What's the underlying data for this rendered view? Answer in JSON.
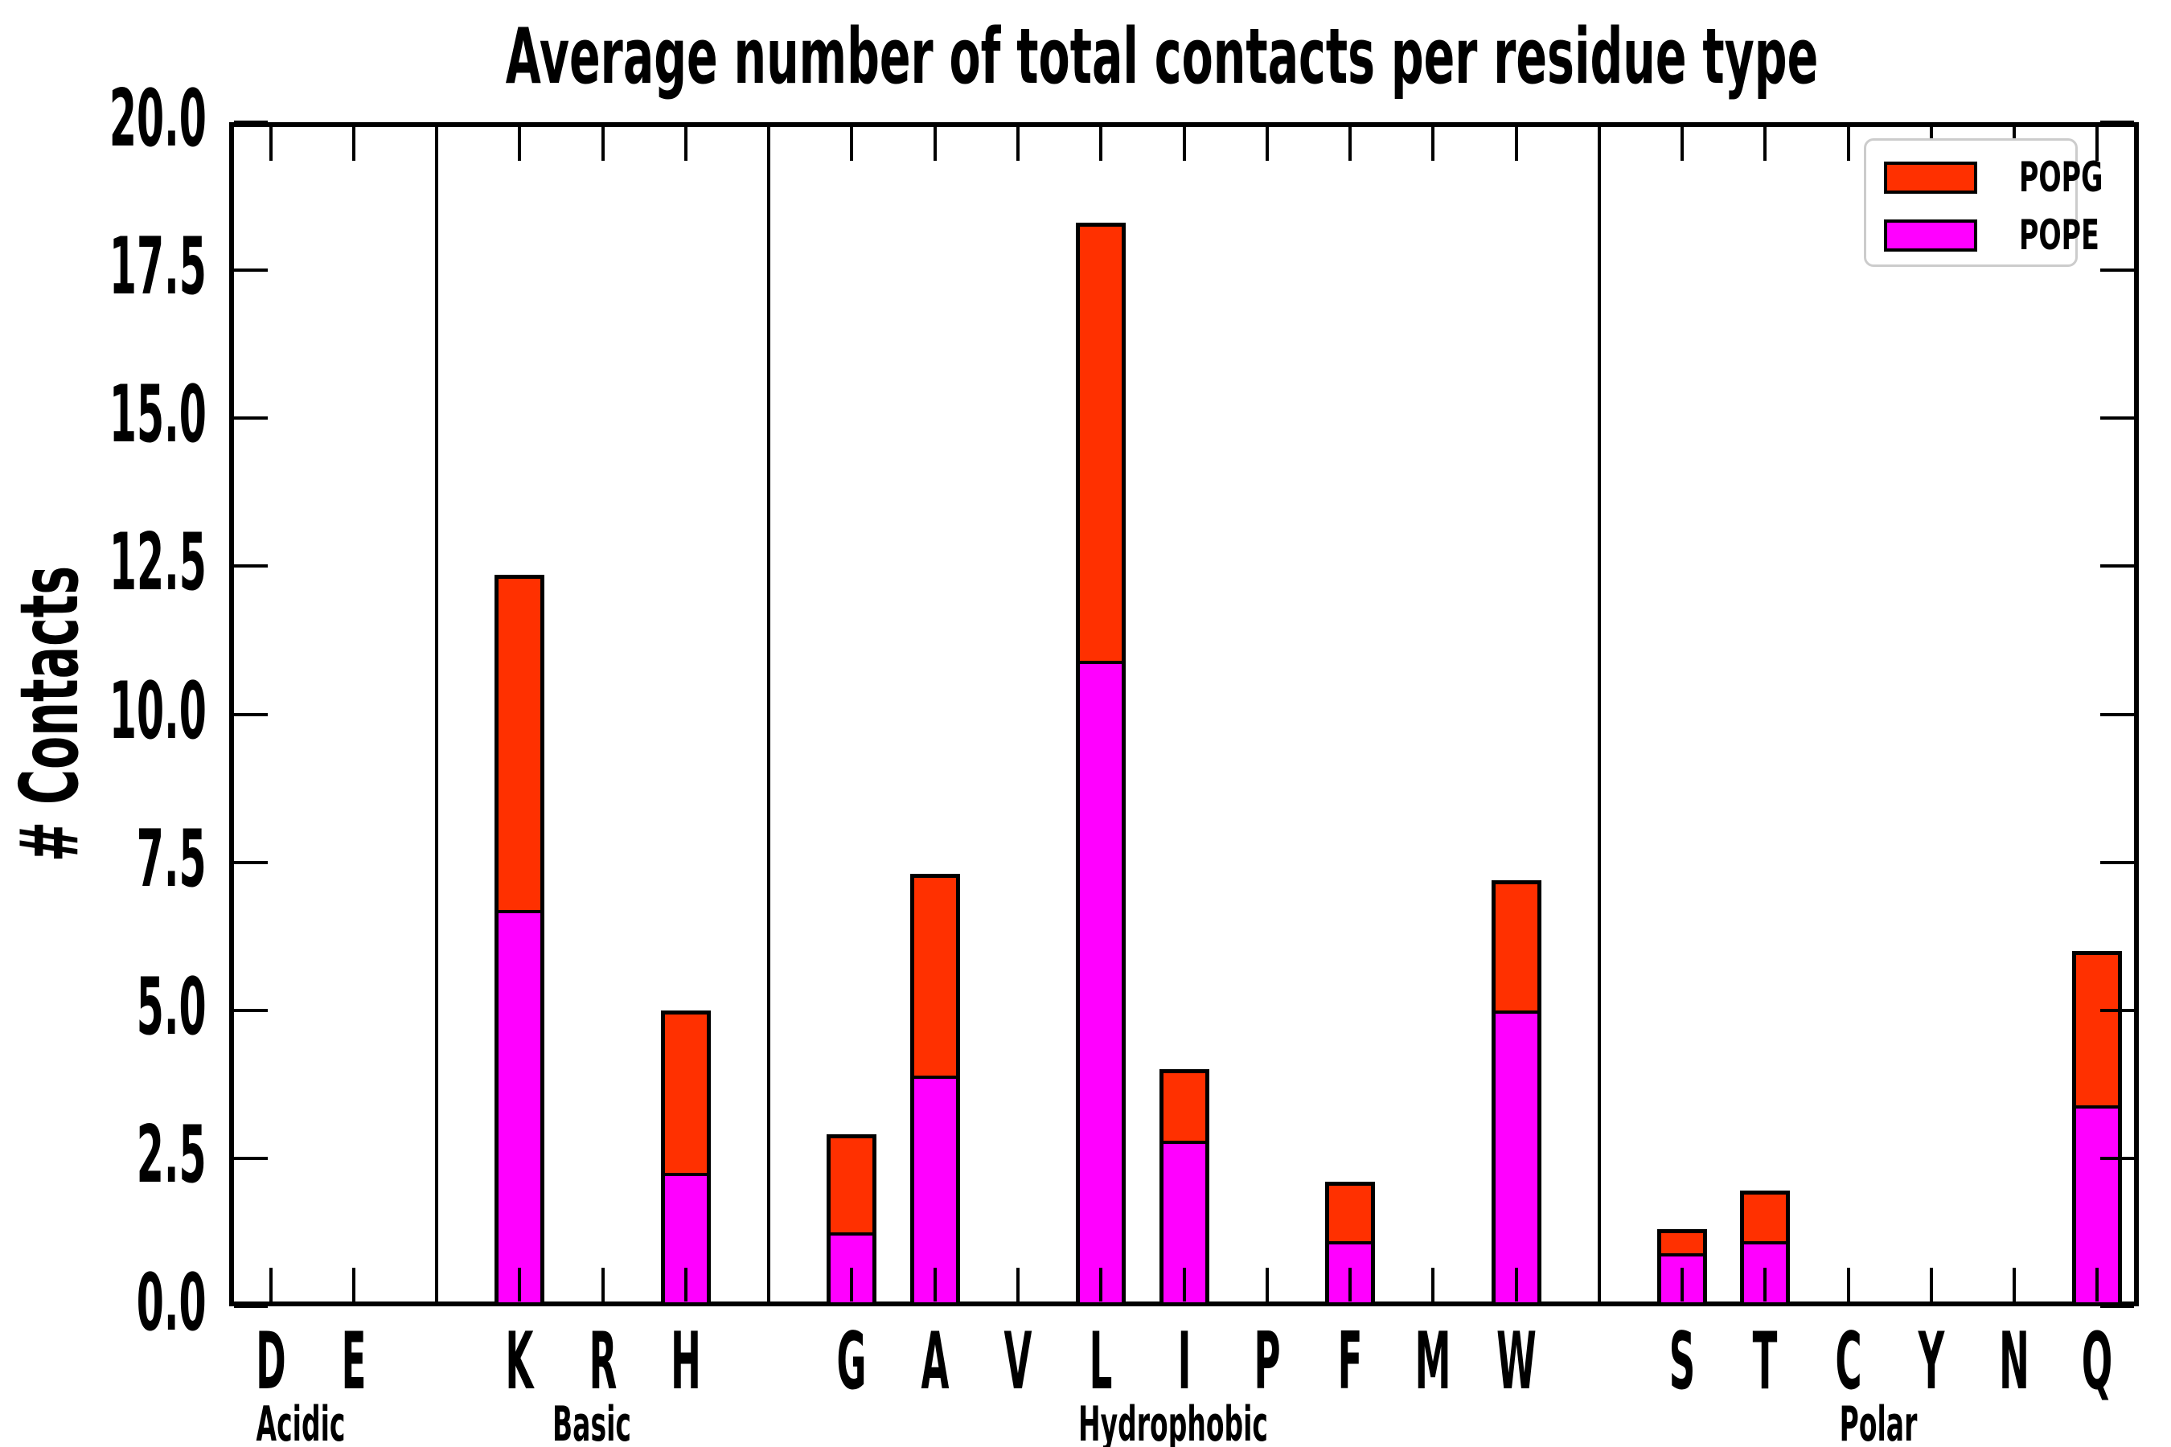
{
  "chart_data": {
    "type": "bar",
    "stacked": true,
    "title": "Average number of total contacts per residue type",
    "ylabel": "# Contacts",
    "xlabel": "",
    "ylim": [
      0,
      20
    ],
    "yticks": [
      0.0,
      2.5,
      5.0,
      7.5,
      10.0,
      12.5,
      15.0,
      17.5,
      20.0
    ],
    "ytick_labels": [
      "0.0",
      "2.5",
      "5.0",
      "7.5",
      "10.0",
      "12.5",
      "15.0",
      "17.5",
      "20.0"
    ],
    "categories": [
      "D",
      "E",
      "K",
      "R",
      "H",
      "G",
      "A",
      "V",
      "L",
      "I",
      "P",
      "F",
      "M",
      "W",
      "S",
      "T",
      "C",
      "Y",
      "N",
      "Q"
    ],
    "groups": [
      {
        "label": "Acidic",
        "members": [
          "D",
          "E"
        ]
      },
      {
        "label": "Basic",
        "members": [
          "K",
          "R",
          "H"
        ]
      },
      {
        "label": "Hydrophobic",
        "members": [
          "G",
          "A",
          "V",
          "L",
          "I",
          "P",
          "F",
          "M",
          "W"
        ]
      },
      {
        "label": "Polar",
        "members": [
          "S",
          "T",
          "C",
          "Y",
          "N",
          "Q"
        ]
      }
    ],
    "series": [
      {
        "name": "POPG",
        "color": "#ff3000",
        "values": [
          0,
          0,
          5.65,
          0,
          2.75,
          1.65,
          3.4,
          0,
          7.4,
          1.2,
          0,
          1.0,
          0,
          2.2,
          0.4,
          0.85,
          0,
          0,
          0,
          2.6
        ]
      },
      {
        "name": "POPE",
        "color": "#ff00ff",
        "values": [
          0,
          0,
          6.7,
          0,
          2.25,
          1.25,
          3.9,
          0,
          10.9,
          2.8,
          0,
          1.1,
          0,
          5.0,
          0.9,
          1.1,
          0,
          0,
          0,
          3.4
        ]
      }
    ],
    "stack_order_bottom_to_top": [
      "POPE",
      "POPG"
    ],
    "totals": [
      0,
      0,
      12.35,
      0,
      5.0,
      2.9,
      7.3,
      0,
      18.3,
      4.0,
      0,
      2.1,
      0,
      7.2,
      1.3,
      1.95,
      0,
      0,
      0,
      6.0
    ],
    "legend": {
      "position": "upper right",
      "entries": [
        "POPG",
        "POPE"
      ]
    },
    "grid": false,
    "tick_direction": "in",
    "ticks_on_all_sides": true
  },
  "colors": {
    "popg": "#ff3000",
    "pope": "#ff00ff",
    "axis": "#000000",
    "legend_border": "#cccccc",
    "background": "#ffffff"
  }
}
